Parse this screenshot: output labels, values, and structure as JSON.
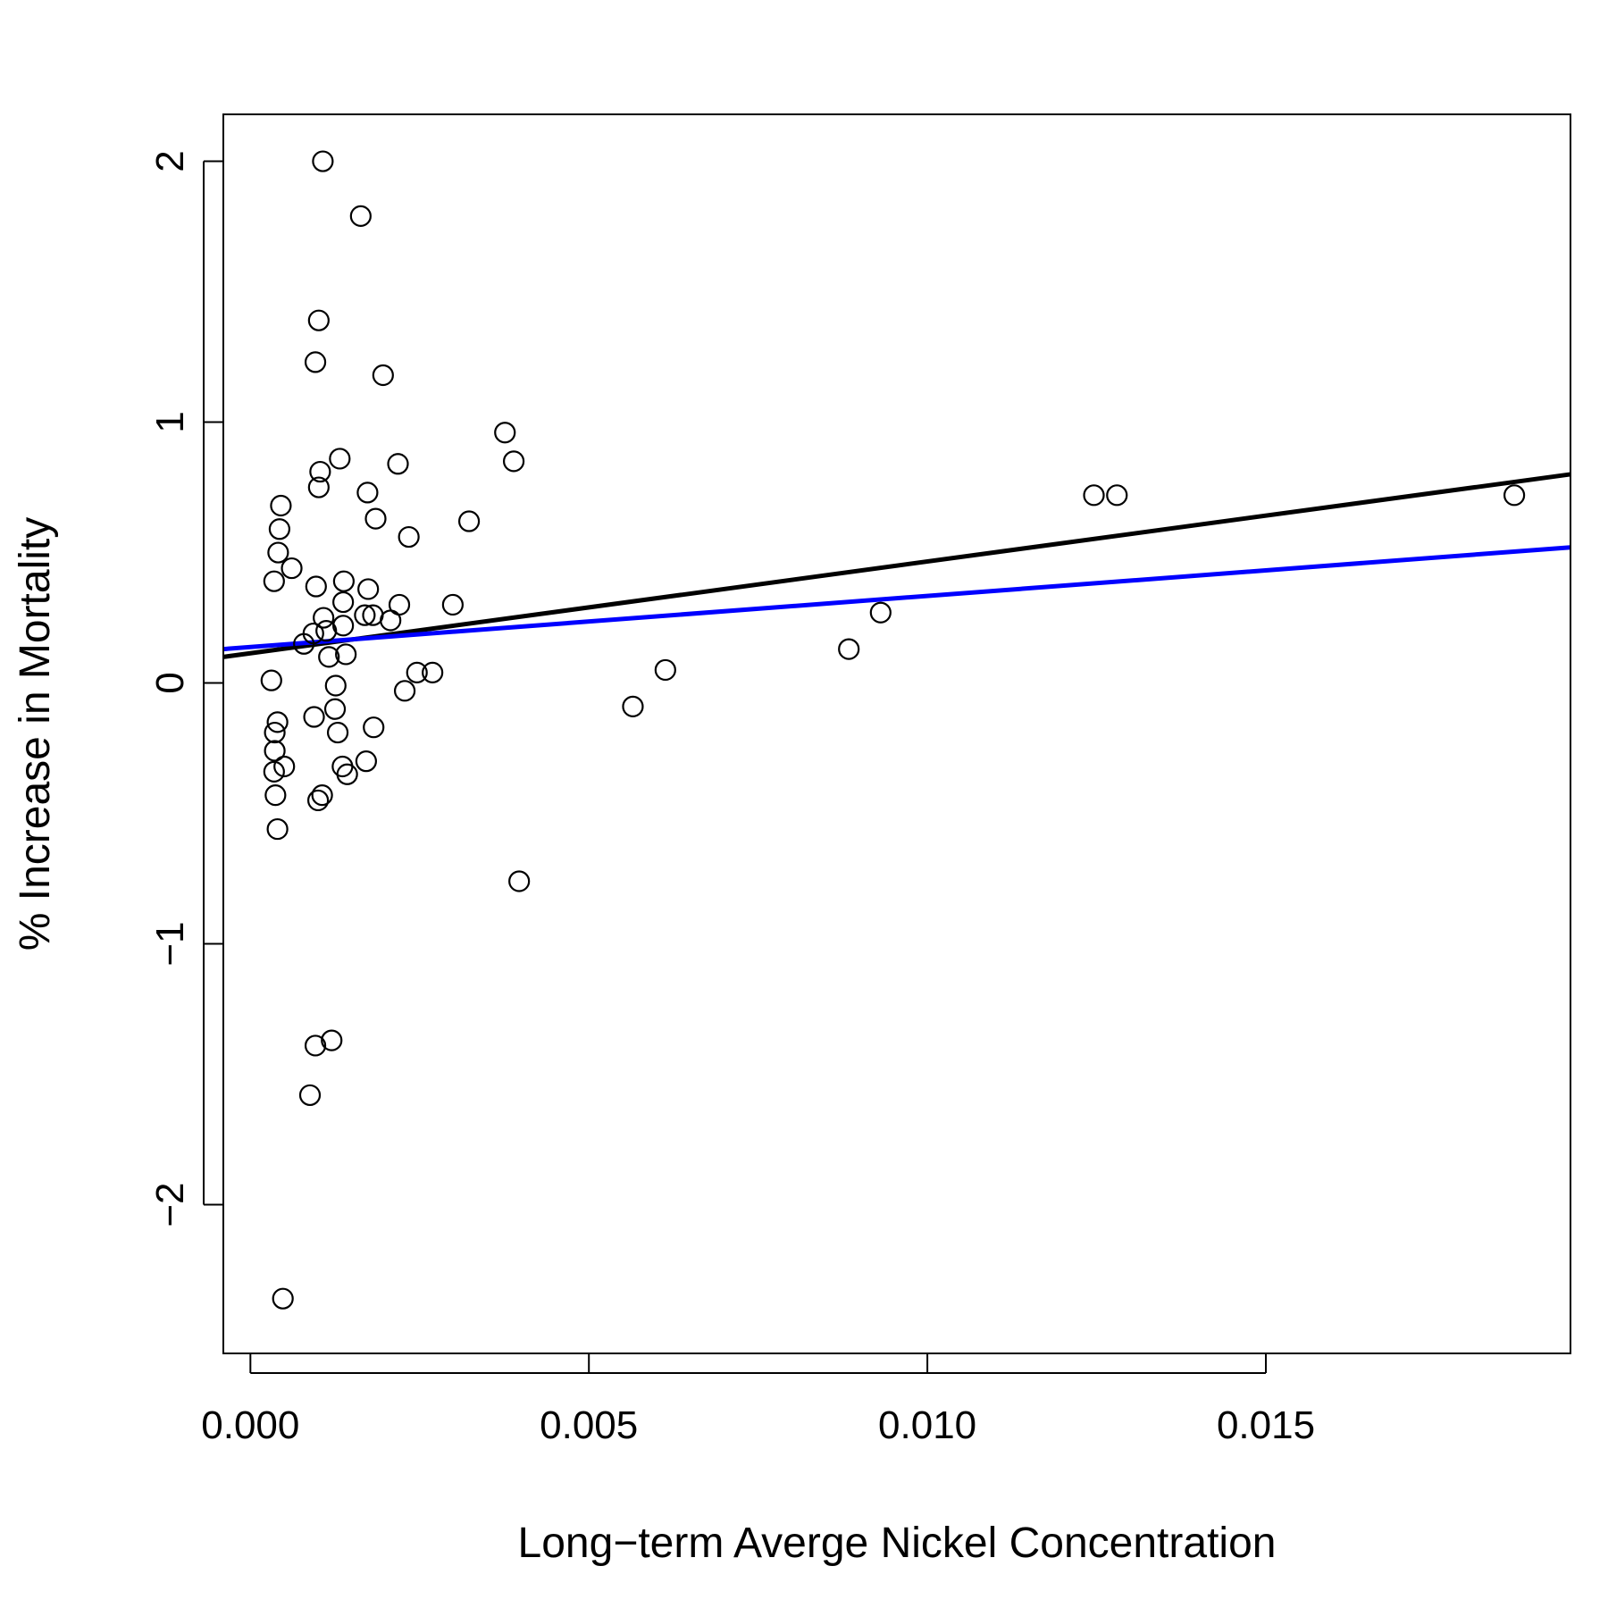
{
  "chart_data": {
    "type": "scatter",
    "title": "",
    "xlabel": "Long−term Averge Nickel Concentration",
    "ylabel": "% Increase in Mortality",
    "xlim": [
      -0.0004,
      0.0195
    ],
    "ylim": [
      -2.57,
      2.18
    ],
    "grid": false,
    "legend": "none",
    "x_ticks": [
      {
        "value": 0.0,
        "label": "0.000"
      },
      {
        "value": 0.005,
        "label": "0.005"
      },
      {
        "value": 0.01,
        "label": "0.010"
      },
      {
        "value": 0.015,
        "label": "0.015"
      }
    ],
    "y_ticks": [
      {
        "value": -2,
        "label": "−2"
      },
      {
        "value": -1,
        "label": "−1"
      },
      {
        "value": 0,
        "label": "0"
      },
      {
        "value": 1,
        "label": "1"
      },
      {
        "value": 2,
        "label": "2"
      }
    ],
    "points": [
      [
        0.00107,
        2.0
      ],
      [
        0.00163,
        1.79
      ],
      [
        0.00101,
        1.39
      ],
      [
        0.00096,
        1.23
      ],
      [
        0.00196,
        1.18
      ],
      [
        0.00376,
        0.96
      ],
      [
        0.00389,
        0.85
      ],
      [
        0.00132,
        0.86
      ],
      [
        0.00218,
        0.84
      ],
      [
        0.00103,
        0.81
      ],
      [
        0.00101,
        0.75
      ],
      [
        0.00173,
        0.73
      ],
      [
        0.00045,
        0.68
      ],
      [
        0.00185,
        0.63
      ],
      [
        0.00323,
        0.62
      ],
      [
        0.00043,
        0.59
      ],
      [
        0.00234,
        0.56
      ],
      [
        0.00041,
        0.5
      ],
      [
        0.00061,
        0.44
      ],
      [
        0.00035,
        0.39
      ],
      [
        0.00138,
        0.39
      ],
      [
        0.00097,
        0.37
      ],
      [
        0.00174,
        0.36
      ],
      [
        0.00137,
        0.31
      ],
      [
        0.0022,
        0.3
      ],
      [
        0.00299,
        0.3
      ],
      [
        0.00169,
        0.26
      ],
      [
        0.00181,
        0.26
      ],
      [
        0.00108,
        0.25
      ],
      [
        0.00207,
        0.24
      ],
      [
        0.00137,
        0.22
      ],
      [
        0.00112,
        0.2
      ],
      [
        0.00093,
        0.19
      ],
      [
        0.00079,
        0.15
      ],
      [
        0.00116,
        0.1
      ],
      [
        0.00141,
        0.11
      ],
      [
        0.00246,
        0.04
      ],
      [
        0.00269,
        0.04
      ],
      [
        0.00613,
        0.05
      ],
      [
        0.00031,
        0.01
      ],
      [
        0.00126,
        -0.01
      ],
      [
        0.00228,
        -0.03
      ],
      [
        0.00565,
        -0.09
      ],
      [
        0.00125,
        -0.1
      ],
      [
        0.00094,
        -0.13
      ],
      [
        0.0004,
        -0.15
      ],
      [
        0.00182,
        -0.17
      ],
      [
        0.00129,
        -0.19
      ],
      [
        0.00036,
        -0.19
      ],
      [
        0.00036,
        -0.26
      ],
      [
        0.0005,
        -0.32
      ],
      [
        0.00136,
        -0.32
      ],
      [
        0.00035,
        -0.34
      ],
      [
        0.00143,
        -0.35
      ],
      [
        0.00171,
        -0.3
      ],
      [
        0.00106,
        -0.43
      ],
      [
        0.00037,
        -0.43
      ],
      [
        0.001,
        -0.45
      ],
      [
        0.0004,
        -0.56
      ],
      [
        0.00397,
        -0.76
      ],
      [
        0.0012,
        -1.37
      ],
      [
        0.00096,
        -1.39
      ],
      [
        0.00088,
        -1.58
      ],
      [
        0.00048,
        -2.36
      ],
      [
        0.00884,
        0.13
      ],
      [
        0.00931,
        0.27
      ],
      [
        0.01246,
        0.72
      ],
      [
        0.0128,
        0.72
      ],
      [
        0.01867,
        0.72
      ]
    ],
    "lines": [
      {
        "color": "#000000",
        "x": [
          -0.0004,
          0.0195
        ],
        "y": [
          0.1,
          0.8
        ]
      },
      {
        "color": "#0000ff",
        "x": [
          -0.0004,
          0.0195
        ],
        "y": [
          0.13,
          0.52
        ]
      }
    ]
  }
}
